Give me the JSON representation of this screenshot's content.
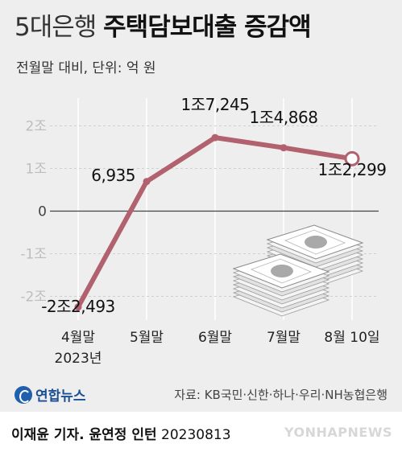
{
  "header": {
    "title_light": "5대은행",
    "title_bold": "주택담보대출 증감액",
    "subtitle": "전월말 대비, 단위: 억 원"
  },
  "chart_data": {
    "type": "line",
    "title": "5대은행 주택담보대출 증감액",
    "subtitle": "전월말 대비, 단위: 억 원",
    "categories": [
      "4월말\n2023년",
      "5월말",
      "6월말",
      "7월말",
      "8월 10일"
    ],
    "values": [
      -22493,
      6935,
      17245,
      14868,
      12299
    ],
    "value_labels": [
      "-2조2,493",
      "6,935",
      "1조7,245",
      "1조4,868",
      "1조2,299"
    ],
    "y_ticks": [
      {
        "value": 20000,
        "label": "2조"
      },
      {
        "value": 10000,
        "label": "1조"
      },
      {
        "value": 0,
        "label": "0"
      },
      {
        "value": -10000,
        "label": "-1조"
      },
      {
        "value": -20000,
        "label": "-2조"
      }
    ],
    "ylim": [
      -25000,
      25000
    ],
    "unit": "억 원",
    "line_color": "#b2616e",
    "last_point_hollow": true
  },
  "footer": {
    "logo_text": "연합뉴스",
    "source": "자료: KB국민·신한·하나·우리·NH농협은행",
    "credit_author": "이재윤 기자. 윤연정 인턴",
    "credit_date": "20230813",
    "watermark": "YONHAPNEWS"
  }
}
